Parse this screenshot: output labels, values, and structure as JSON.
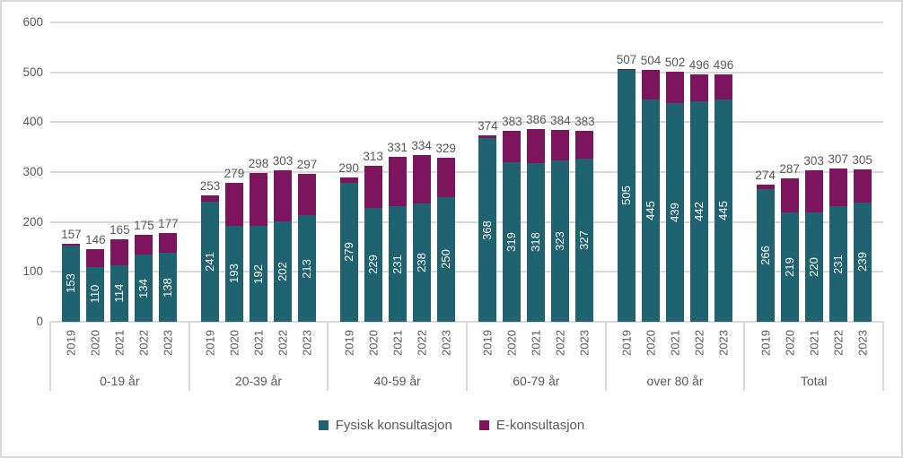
{
  "chart_data": {
    "type": "bar",
    "subtype": "stacked",
    "title": "",
    "legend_position": "bottom",
    "grid": true,
    "y_axis": {
      "min": 0,
      "max": 600,
      "tick_interval": 100,
      "tick_labels": [
        "0",
        "100",
        "200",
        "300",
        "400",
        "500",
        "600"
      ]
    },
    "years": [
      "2019",
      "2020",
      "2021",
      "2022",
      "2023"
    ],
    "groups": [
      {
        "label": "0-19 år",
        "fysisk": [
          153,
          110,
          114,
          134,
          138
        ],
        "e_konsultasjon": [
          4,
          36,
          51,
          41,
          39
        ],
        "totals": [
          157,
          146,
          165,
          175,
          177
        ]
      },
      {
        "label": "20-39 år",
        "fysisk": [
          241,
          193,
          192,
          202,
          213
        ],
        "e_konsultasjon": [
          12,
          86,
          106,
          101,
          84
        ],
        "totals": [
          253,
          279,
          298,
          303,
          297
        ]
      },
      {
        "label": "40-59 år",
        "fysisk": [
          279,
          229,
          231,
          238,
          250
        ],
        "e_konsultasjon": [
          11,
          84,
          100,
          96,
          79
        ],
        "totals": [
          290,
          313,
          331,
          334,
          329
        ]
      },
      {
        "label": "60-79 år",
        "fysisk": [
          368,
          319,
          318,
          323,
          327
        ],
        "e_konsultasjon": [
          6,
          64,
          68,
          61,
          56
        ],
        "totals": [
          374,
          383,
          386,
          384,
          383
        ]
      },
      {
        "label": "over 80 år",
        "fysisk": [
          505,
          445,
          439,
          442,
          445
        ],
        "e_konsultasjon": [
          2,
          59,
          63,
          54,
          51
        ],
        "totals": [
          507,
          504,
          502,
          496,
          496
        ]
      },
      {
        "label": "Total",
        "fysisk": [
          266,
          219,
          220,
          231,
          239
        ],
        "e_konsultasjon": [
          8,
          68,
          83,
          76,
          66
        ],
        "totals": [
          274,
          287,
          303,
          307,
          305
        ]
      }
    ],
    "series": [
      {
        "name": "Fysisk konsultasjon",
        "color": "#206370"
      },
      {
        "name": "E-konsultasjon",
        "color": "#7C155E"
      }
    ],
    "colors": {
      "grid": "#D9D9D9",
      "text": "#595959",
      "bar_label": "#FFFFFF"
    }
  }
}
